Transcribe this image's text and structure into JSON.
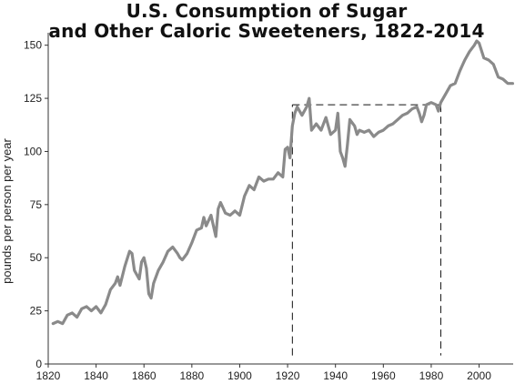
{
  "chart_data": {
    "type": "line",
    "title_line1": "U.S. Consumption of Sugar",
    "title_line2": "and Other Caloric Sweeteners, 1822-2014",
    "xlabel": "",
    "ylabel": "pounds per person per year",
    "xlim": [
      1820,
      2015
    ],
    "ylim": [
      0,
      155
    ],
    "x_ticks": [
      "1820",
      "1840",
      "1860",
      "1880",
      "1900",
      "1920",
      "1940",
      "1960",
      "1980",
      "2000"
    ],
    "y_ticks": [
      "0",
      "25",
      "50",
      "75",
      "100",
      "125",
      "150"
    ],
    "line_color": "#8a8a8a",
    "reference_box": {
      "x_start": 1922,
      "x_end": 1984,
      "y_top": 122
    },
    "series": [
      {
        "x": [
          1822,
          1824,
          1826,
          1828,
          1830,
          1832,
          1834,
          1836,
          1838,
          1840,
          1842,
          1844,
          1846,
          1848,
          1849,
          1850,
          1852,
          1854,
          1855,
          1856,
          1858,
          1859,
          1860,
          1861,
          1862,
          1863,
          1864,
          1866,
          1868,
          1870,
          1872,
          1874,
          1875,
          1876,
          1878,
          1880,
          1882,
          1884,
          1885,
          1886,
          1888,
          1890,
          1891,
          1892,
          1894,
          1896,
          1897,
          1898,
          1900,
          1902,
          1904,
          1906,
          1908,
          1910,
          1912,
          1914,
          1916,
          1918,
          1919,
          1920,
          1921,
          1922,
          1923,
          1924,
          1926,
          1928,
          1929,
          1930,
          1932,
          1934,
          1936,
          1938,
          1940,
          1941,
          1942,
          1943,
          1944,
          1945,
          1946,
          1948,
          1949,
          1950,
          1952,
          1954,
          1956,
          1958,
          1960,
          1962,
          1964,
          1966,
          1968,
          1970,
          1972,
          1974,
          1975,
          1976,
          1977,
          1978,
          1980,
          1982,
          1983,
          1984,
          1986,
          1988,
          1990,
          1992,
          1994,
          1996,
          1998,
          1999,
          2000,
          2002,
          2004,
          2006,
          2008,
          2010,
          2012,
          2014
        ],
        "values": [
          19,
          20,
          19,
          23,
          24,
          22,
          26,
          27,
          25,
          27,
          24,
          28,
          35,
          38,
          41,
          37,
          46,
          53,
          52,
          44,
          40,
          48,
          50,
          45,
          33,
          31,
          38,
          44,
          48,
          53,
          55,
          52,
          50,
          49,
          52,
          57,
          63,
          64,
          69,
          65,
          70,
          60,
          73,
          76,
          71,
          70,
          71,
          72,
          70,
          79,
          84,
          82,
          88,
          86,
          87,
          87,
          90,
          88,
          101,
          102,
          97,
          112,
          118,
          121,
          117,
          121,
          125,
          110,
          113,
          110,
          116,
          108,
          110,
          118,
          100,
          97,
          93,
          103,
          115,
          112,
          108,
          110,
          109,
          110,
          107,
          109,
          110,
          112,
          113,
          115,
          117,
          118,
          120,
          121,
          118,
          114,
          117,
          122,
          123,
          122,
          119,
          123,
          127,
          131,
          132,
          138,
          143,
          147,
          150,
          152,
          151,
          144,
          143,
          141,
          135,
          134,
          132,
          132
        ]
      }
    ]
  }
}
